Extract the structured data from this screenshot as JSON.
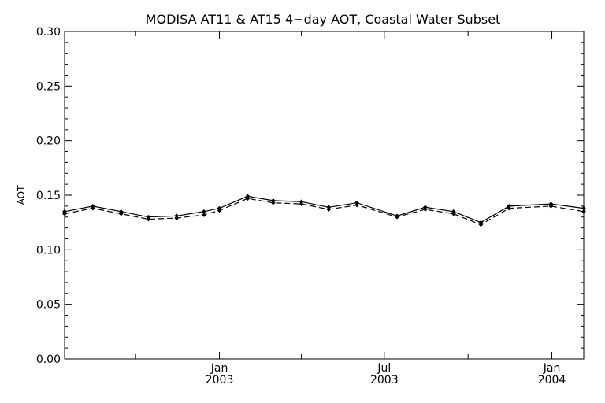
{
  "chart_data": {
    "type": "line",
    "title": "MODISA AT11 & AT15 4−day AOT, Coastal Water Subset",
    "xlabel": "",
    "ylabel": "AOT",
    "ylim": [
      0.0,
      0.3
    ],
    "yticks": [
      "0.00",
      "0.05",
      "0.10",
      "0.15",
      "0.20",
      "0.25",
      "0.30"
    ],
    "xlim": [
      "2002-07-15",
      "2004-02-05"
    ],
    "xticks": [
      {
        "date": "2003-01-01",
        "month": "Jan",
        "year": "2003"
      },
      {
        "date": "2003-07-01",
        "month": "Jul",
        "year": "2003"
      },
      {
        "date": "2004-01-01",
        "month": "Jan",
        "year": "2004"
      }
    ],
    "grid": false,
    "legend": "none",
    "x": [
      "2002-07-15",
      "2002-08-15",
      "2002-09-15",
      "2002-10-15",
      "2002-11-15",
      "2002-12-15",
      "2003-01-01",
      "2003-02-01",
      "2003-03-01",
      "2003-04-01",
      "2003-05-01",
      "2003-06-01",
      "2003-07-15",
      "2003-08-15",
      "2003-09-15",
      "2003-10-15",
      "2003-11-15",
      "2003-12-31",
      "2004-02-05"
    ],
    "series": [
      {
        "style": "solid",
        "values": [
          0.135,
          0.14,
          0.135,
          0.13,
          0.131,
          0.135,
          0.138,
          0.149,
          0.145,
          0.144,
          0.139,
          0.143,
          0.131,
          0.139,
          0.135,
          0.125,
          0.14,
          0.142,
          0.138
        ]
      },
      {
        "style": "dashed",
        "values": [
          0.133,
          0.138,
          0.133,
          0.128,
          0.129,
          0.132,
          0.136,
          0.147,
          0.143,
          0.142,
          0.137,
          0.141,
          0.13,
          0.137,
          0.133,
          0.123,
          0.138,
          0.14,
          0.135
        ]
      }
    ]
  }
}
